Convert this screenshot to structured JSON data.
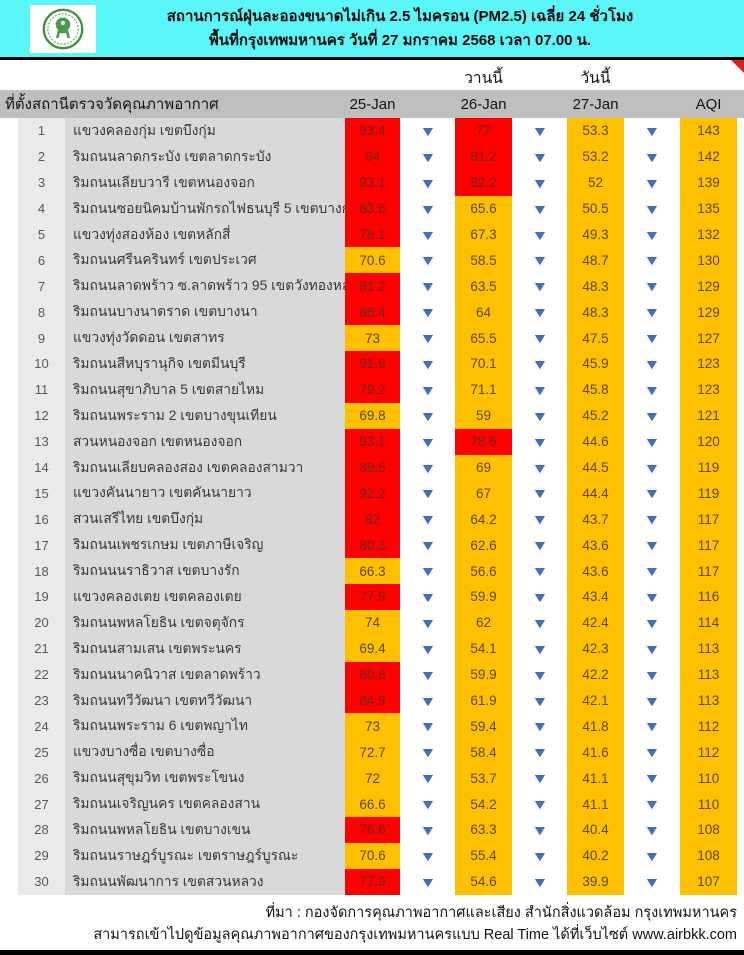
{
  "banner": {
    "title_line1": "สถานการณ์ฝุ่นละอองขนาดไม่เกิน 2.5 ไมครอน (PM2.5) เฉลี่ย 24 ชั่วโมง",
    "title_line2": "พื้นที่กรุงเทพมหานคร วันที่ 27 มกราคม 2568 เวลา 07.00 น.",
    "logo": "bangkok-metropolitan-administration-seal"
  },
  "date_labels": {
    "yesterday": "วานนี้",
    "today": "วันนี้"
  },
  "columns": {
    "station": "ที่ตั้งสถานีตรวจวัดคุณภาพอากาศ",
    "d25": "25-Jan",
    "d26": "26-Jan",
    "d27": "27-Jan",
    "aqi": "AQI"
  },
  "icons": {
    "down_arrow": "▼"
  },
  "colors": {
    "banner_cyan": "#5BF6F8",
    "header_gray": "#BFBFBF",
    "station_gray": "#D9D9D9",
    "red": "#FE0000",
    "orange": "#FFC000",
    "arrow_blue": "#3E6FC1"
  },
  "table": {
    "rows": [
      {
        "rank": "1",
        "station": "แขวงคลองกุ่ม เขตบึงกุ่ม",
        "v25": "93.4",
        "v25_level": "red",
        "v26": "77",
        "v26_level": "red",
        "v27": "53.3",
        "v27_level": "orange",
        "aqi": "143",
        "aqi_level": "orange",
        "trends": [
          "down",
          "down",
          "down"
        ]
      },
      {
        "rank": "2",
        "station": "ริมถนนลาดกระบัง เขตลาดกระบัง",
        "v25": "94",
        "v25_level": "red",
        "v26": "81.2",
        "v26_level": "red",
        "v27": "53.2",
        "v27_level": "orange",
        "aqi": "142",
        "aqi_level": "orange",
        "trends": [
          "down",
          "down",
          "down"
        ]
      },
      {
        "rank": "3",
        "station": "ริมถนนเลียบวารี เขตหนองจอก",
        "v25": "93.1",
        "v25_level": "red",
        "v26": "82.2",
        "v26_level": "red",
        "v27": "52",
        "v27_level": "orange",
        "aqi": "139",
        "aqi_level": "orange",
        "trends": [
          "down",
          "down",
          "down"
        ]
      },
      {
        "rank": "4",
        "station": "ริมถนนซอยนิคมบ้านพักรถไฟธนบุรี 5 เขตบางกอกน้อย",
        "v25": "83.8",
        "v25_level": "red",
        "v26": "65.6",
        "v26_level": "orange",
        "v27": "50.5",
        "v27_level": "orange",
        "aqi": "135",
        "aqi_level": "orange",
        "trends": [
          "down",
          "down",
          "down"
        ]
      },
      {
        "rank": "5",
        "station": "แขวงทุ่งสองห้อง เขตหลักสี่",
        "v25": "78.1",
        "v25_level": "red",
        "v26": "67.3",
        "v26_level": "orange",
        "v27": "49.3",
        "v27_level": "orange",
        "aqi": "132",
        "aqi_level": "orange",
        "trends": [
          "down",
          "down",
          "down"
        ]
      },
      {
        "rank": "6",
        "station": "ริมถนนศรีนครินทร์ เขตประเวศ",
        "v25": "70.6",
        "v25_level": "orange",
        "v26": "58.5",
        "v26_level": "orange",
        "v27": "48.7",
        "v27_level": "orange",
        "aqi": "130",
        "aqi_level": "orange",
        "trends": [
          "down",
          "down",
          "down"
        ]
      },
      {
        "rank": "7",
        "station": "ริมถนนลาดพร้าว ซ.ลาดพร้าว 95 เขตวังทองหลาง",
        "v25": "81.2",
        "v25_level": "red",
        "v26": "63.5",
        "v26_level": "orange",
        "v27": "48.3",
        "v27_level": "orange",
        "aqi": "129",
        "aqi_level": "orange",
        "trends": [
          "down",
          "down",
          "down"
        ]
      },
      {
        "rank": "8",
        "station": "ริมถนนบางนาตราด เขตบางนา",
        "v25": "86.4",
        "v25_level": "red",
        "v26": "64",
        "v26_level": "orange",
        "v27": "48.3",
        "v27_level": "orange",
        "aqi": "129",
        "aqi_level": "orange",
        "trends": [
          "down",
          "down",
          "down"
        ]
      },
      {
        "rank": "9",
        "station": "แขวงทุ่งวัดดอน เขตสาทร",
        "v25": "73",
        "v25_level": "orange",
        "v26": "65.5",
        "v26_level": "orange",
        "v27": "47.5",
        "v27_level": "orange",
        "aqi": "127",
        "aqi_level": "orange",
        "trends": [
          "down",
          "down",
          "down"
        ]
      },
      {
        "rank": "10",
        "station": "ริมถนนสีหบุรานุกิจ เขตมีนบุรี",
        "v25": "91.9",
        "v25_level": "red",
        "v26": "70.1",
        "v26_level": "orange",
        "v27": "45.9",
        "v27_level": "orange",
        "aqi": "123",
        "aqi_level": "orange",
        "trends": [
          "down",
          "down",
          "down"
        ]
      },
      {
        "rank": "11",
        "station": "ริมถนนสุขาภิบาล 5 เขตสายไหม",
        "v25": "79.2",
        "v25_level": "red",
        "v26": "71.1",
        "v26_level": "orange",
        "v27": "45.8",
        "v27_level": "orange",
        "aqi": "123",
        "aqi_level": "orange",
        "trends": [
          "down",
          "down",
          "down"
        ]
      },
      {
        "rank": "12",
        "station": "ริมถนนพระราม 2 เขตบางขุนเทียน",
        "v25": "69.8",
        "v25_level": "orange",
        "v26": "59",
        "v26_level": "orange",
        "v27": "45.2",
        "v27_level": "orange",
        "aqi": "121",
        "aqi_level": "orange",
        "trends": [
          "down",
          "down",
          "down"
        ]
      },
      {
        "rank": "13",
        "station": "สวนหนองจอก เขตหนองจอก",
        "v25": "93.1",
        "v25_level": "red",
        "v26": "78.6",
        "v26_level": "red",
        "v27": "44.6",
        "v27_level": "orange",
        "aqi": "120",
        "aqi_level": "orange",
        "trends": [
          "down",
          "down",
          "down"
        ]
      },
      {
        "rank": "14",
        "station": "ริมถนนเลียบคลองสอง เขตคลองสามวา",
        "v25": "89.5",
        "v25_level": "red",
        "v26": "69",
        "v26_level": "orange",
        "v27": "44.5",
        "v27_level": "orange",
        "aqi": "119",
        "aqi_level": "orange",
        "trends": [
          "down",
          "down",
          "down"
        ]
      },
      {
        "rank": "15",
        "station": "แขวงคันนายาว เขตคันนายาว",
        "v25": "92.2",
        "v25_level": "red",
        "v26": "67",
        "v26_level": "orange",
        "v27": "44.4",
        "v27_level": "orange",
        "aqi": "119",
        "aqi_level": "orange",
        "trends": [
          "down",
          "down",
          "down"
        ]
      },
      {
        "rank": "16",
        "station": "สวนเสรีไทย เขตบึงกุ่ม",
        "v25": "82",
        "v25_level": "red",
        "v26": "64.2",
        "v26_level": "orange",
        "v27": "43.7",
        "v27_level": "orange",
        "aqi": "117",
        "aqi_level": "orange",
        "trends": [
          "down",
          "down",
          "down"
        ]
      },
      {
        "rank": "17",
        "station": "ริมถนนเพชรเกษม เขตภาษีเจริญ",
        "v25": "80.3",
        "v25_level": "red",
        "v26": "62.6",
        "v26_level": "orange",
        "v27": "43.6",
        "v27_level": "orange",
        "aqi": "117",
        "aqi_level": "orange",
        "trends": [
          "down",
          "down",
          "down"
        ]
      },
      {
        "rank": "18",
        "station": "ริมถนนนราธิวาส เขตบางรัก",
        "v25": "66.3",
        "v25_level": "orange",
        "v26": "56.6",
        "v26_level": "orange",
        "v27": "43.6",
        "v27_level": "orange",
        "aqi": "117",
        "aqi_level": "orange",
        "trends": [
          "down",
          "down",
          "down"
        ]
      },
      {
        "rank": "19",
        "station": "แขวงคลองเตย เขตคลองเตย",
        "v25": "77.9",
        "v25_level": "red",
        "v26": "59.9",
        "v26_level": "orange",
        "v27": "43.4",
        "v27_level": "orange",
        "aqi": "116",
        "aqi_level": "orange",
        "trends": [
          "down",
          "down",
          "down"
        ]
      },
      {
        "rank": "20",
        "station": "ริมถนนพหลโยธิน เขตจตุจักร",
        "v25": "74",
        "v25_level": "orange",
        "v26": "62",
        "v26_level": "orange",
        "v27": "42.4",
        "v27_level": "orange",
        "aqi": "114",
        "aqi_level": "orange",
        "trends": [
          "down",
          "down",
          "down"
        ]
      },
      {
        "rank": "21",
        "station": "ริมถนนสามเสน เขตพระนคร",
        "v25": "69.4",
        "v25_level": "orange",
        "v26": "54.1",
        "v26_level": "orange",
        "v27": "42.3",
        "v27_level": "orange",
        "aqi": "113",
        "aqi_level": "orange",
        "trends": [
          "down",
          "down",
          "down"
        ]
      },
      {
        "rank": "22",
        "station": "ริมถนนนาคนิวาส เขตลาดพร้าว",
        "v25": "80.8",
        "v25_level": "red",
        "v26": "59.9",
        "v26_level": "orange",
        "v27": "42.2",
        "v27_level": "orange",
        "aqi": "113",
        "aqi_level": "orange",
        "trends": [
          "down",
          "down",
          "down"
        ]
      },
      {
        "rank": "23",
        "station": "ริมถนนทวีวัฒนา เขตทวีวัฒนา",
        "v25": "84.9",
        "v25_level": "red",
        "v26": "61.9",
        "v26_level": "orange",
        "v27": "42.1",
        "v27_level": "orange",
        "aqi": "113",
        "aqi_level": "orange",
        "trends": [
          "down",
          "down",
          "down"
        ]
      },
      {
        "rank": "24",
        "station": "ริมถนนพระราม 6 เขตพญาไท",
        "v25": "73",
        "v25_level": "orange",
        "v26": "59.4",
        "v26_level": "orange",
        "v27": "41.8",
        "v27_level": "orange",
        "aqi": "112",
        "aqi_level": "orange",
        "trends": [
          "down",
          "down",
          "down"
        ]
      },
      {
        "rank": "25",
        "station": "แขวงบางซื่อ เขตบางซื่อ",
        "v25": "72.7",
        "v25_level": "orange",
        "v26": "58.4",
        "v26_level": "orange",
        "v27": "41.6",
        "v27_level": "orange",
        "aqi": "112",
        "aqi_level": "orange",
        "trends": [
          "down",
          "down",
          "down"
        ]
      },
      {
        "rank": "26",
        "station": "ริมถนนสุขุมวิท เขตพระโขนง",
        "v25": "72",
        "v25_level": "orange",
        "v26": "53.7",
        "v26_level": "orange",
        "v27": "41.1",
        "v27_level": "orange",
        "aqi": "110",
        "aqi_level": "orange",
        "trends": [
          "down",
          "down",
          "down"
        ]
      },
      {
        "rank": "27",
        "station": "ริมถนนเจริญนคร เขตคลองสาน",
        "v25": "66.6",
        "v25_level": "orange",
        "v26": "54.2",
        "v26_level": "orange",
        "v27": "41.1",
        "v27_level": "orange",
        "aqi": "110",
        "aqi_level": "orange",
        "trends": [
          "down",
          "down",
          "down"
        ]
      },
      {
        "rank": "28",
        "station": "ริมถนนพหลโยธิน เขตบางเขน",
        "v25": "76.6",
        "v25_level": "red",
        "v26": "63.3",
        "v26_level": "orange",
        "v27": "40.4",
        "v27_level": "orange",
        "aqi": "108",
        "aqi_level": "orange",
        "trends": [
          "down",
          "down",
          "down"
        ]
      },
      {
        "rank": "29",
        "station": "ริมถนนราษฎร์บูรณะ เขตราษฎร์บูรณะ",
        "v25": "70.6",
        "v25_level": "orange",
        "v26": "55.4",
        "v26_level": "orange",
        "v27": "40.2",
        "v27_level": "orange",
        "aqi": "108",
        "aqi_level": "orange",
        "trends": [
          "down",
          "down",
          "down"
        ]
      },
      {
        "rank": "30",
        "station": "ริมถนนพัฒนาการ เขตสวนหลวง",
        "v25": "77.9",
        "v25_level": "red",
        "v26": "54.6",
        "v26_level": "orange",
        "v27": "39.9",
        "v27_level": "orange",
        "aqi": "107",
        "aqi_level": "orange",
        "trends": [
          "down",
          "down",
          "down"
        ]
      }
    ]
  },
  "footer": {
    "line1": "ที่มา : กองจัดการคุณภาพอากาศและเสียง สำนักสิ่งแวดล้อม กรุงเทพมหานคร",
    "line2": "สามารถเข้าไปดูข้อมูลคุณภาพอากาศของกรุงเทพมหานครแบบ Real Time ได้ที่เว็บไซต์ www.airbkk.com"
  }
}
